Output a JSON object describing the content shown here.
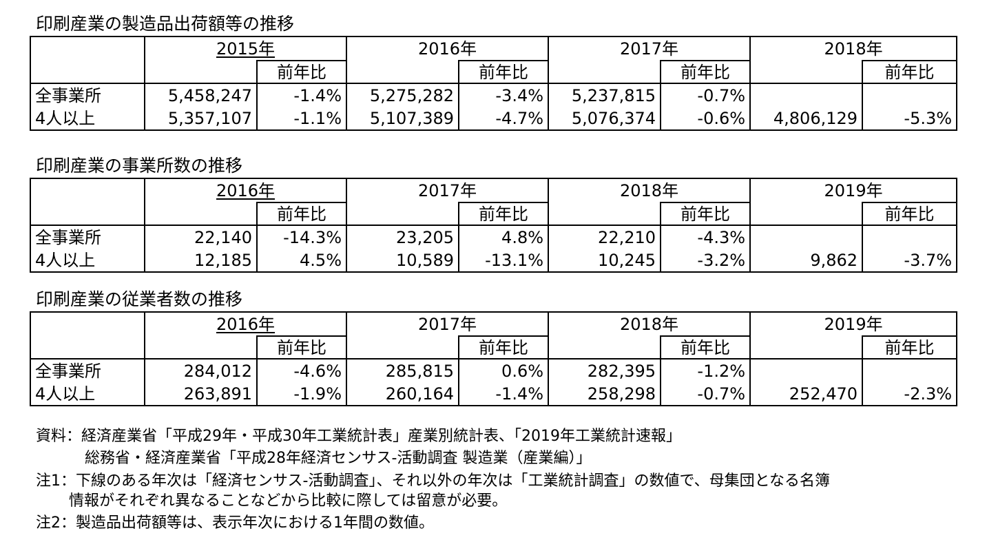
{
  "tables": [
    {
      "title": "印刷産業の製造品出荷額等の推移",
      "years": [
        {
          "label": "2015年",
          "underline": true
        },
        {
          "label": "2016年",
          "underline": false
        },
        {
          "label": "2017年",
          "underline": false
        },
        {
          "label": "2018年",
          "underline": false
        }
      ],
      "sub_label": "前年比",
      "rows": [
        {
          "label": "全事業所",
          "cells": [
            "5,458,247",
            "-1.4%",
            "5,275,282",
            "-3.4%",
            "5,237,815",
            "-0.7%",
            "",
            ""
          ]
        },
        {
          "label": "4人以上",
          "cells": [
            "5,357,107",
            "-1.1%",
            "5,107,389",
            "-4.7%",
            "5,076,374",
            "-0.6%",
            "4,806,129",
            "-5.3%"
          ]
        }
      ]
    },
    {
      "title": "印刷産業の事業所数の推移",
      "years": [
        {
          "label": "2016年",
          "underline": true
        },
        {
          "label": "2017年",
          "underline": false
        },
        {
          "label": "2018年",
          "underline": false
        },
        {
          "label": "2019年",
          "underline": false
        }
      ],
      "sub_label": "前年比",
      "rows": [
        {
          "label": "全事業所",
          "cells": [
            "22,140",
            "-14.3%",
            "23,205",
            "4.8%",
            "22,210",
            "-4.3%",
            "",
            ""
          ]
        },
        {
          "label": "4人以上",
          "cells": [
            "12,185",
            "4.5%",
            "10,589",
            "-13.1%",
            "10,245",
            "-3.2%",
            "9,862",
            "-3.7%"
          ]
        }
      ]
    },
    {
      "title": "印刷産業の従業者数の推移",
      "years": [
        {
          "label": "2016年",
          "underline": true
        },
        {
          "label": "2017年",
          "underline": false
        },
        {
          "label": "2018年",
          "underline": false
        },
        {
          "label": "2019年",
          "underline": false
        }
      ],
      "sub_label": "前年比",
      "rows": [
        {
          "label": "全事業所",
          "cells": [
            "284,012",
            "-4.6%",
            "285,815",
            "0.6%",
            "282,395",
            "-1.2%",
            "",
            ""
          ]
        },
        {
          "label": "4人以上",
          "cells": [
            "263,891",
            "-1.9%",
            "260,164",
            "-1.4%",
            "258,298",
            "-0.7%",
            "252,470",
            "-2.3%"
          ]
        }
      ]
    }
  ],
  "notes": {
    "source_1": "資料：経済産業省「平成29年・平成30年工業統計表」産業別統計表、「2019年工業統計速報」",
    "source_2": "総務省・経済産業省「平成28年経済センサス-活動調査 製造業（産業編）」",
    "note1_line1": "注1：下線のある年次は「経済センサス-活動調査」、それ以外の年次は「工業統計調査」の数値で、母集団となる名簿",
    "note1_line2": "情報がそれぞれ異なることなどから比較に際しては留意が必要。",
    "note2": "注2：製造品出荷額等は、表示年次における1年間の数値。"
  }
}
